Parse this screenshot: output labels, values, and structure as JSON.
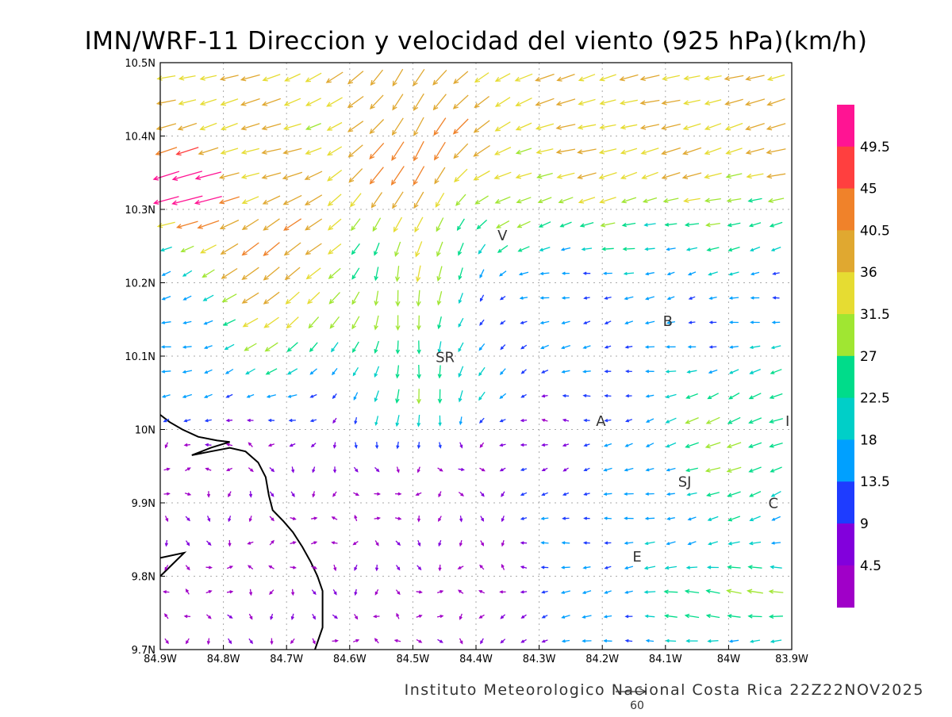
{
  "title": "IMN/WRF-11 Direccion y velocidad del viento (925 hPa)(km/h)",
  "credit": "Instituto Meteorologico Nacional Costa Rica 22Z22NOV2025",
  "map": {
    "lon_range": [
      -84.9,
      -83.9
    ],
    "lat_range": [
      9.7,
      10.5
    ],
    "grid_dashed": true,
    "x_ticks": [
      {
        "value": -84.9,
        "label": "84.9W"
      },
      {
        "value": -84.8,
        "label": "84.8W"
      },
      {
        "value": -84.7,
        "label": "84.7W"
      },
      {
        "value": -84.6,
        "label": "84.6W"
      },
      {
        "value": -84.5,
        "label": "84.5W"
      },
      {
        "value": -84.4,
        "label": "84.4W"
      },
      {
        "value": -84.3,
        "label": "84.3W"
      },
      {
        "value": -84.2,
        "label": "84.2W"
      },
      {
        "value": -84.1,
        "label": "84.1W"
      },
      {
        "value": -84.0,
        "label": "84W"
      },
      {
        "value": -83.9,
        "label": "83.9W"
      }
    ],
    "y_ticks": [
      {
        "value": 10.5,
        "label": "10.5N"
      },
      {
        "value": 10.4,
        "label": "10.4N"
      },
      {
        "value": 10.3,
        "label": "10.3N"
      },
      {
        "value": 10.2,
        "label": "10.2N"
      },
      {
        "value": 10.1,
        "label": "10.1N"
      },
      {
        "value": 10.0,
        "label": "10N"
      },
      {
        "value": 9.9,
        "label": "9.9N"
      },
      {
        "value": 9.8,
        "label": "9.8N"
      },
      {
        "value": 9.7,
        "label": "9.7N"
      }
    ],
    "cities": [
      {
        "label": "V",
        "lon": -84.366,
        "lat": 10.258
      },
      {
        "label": "SR",
        "lon": -84.464,
        "lat": 10.092
      },
      {
        "label": "B",
        "lon": -84.104,
        "lat": 10.141
      },
      {
        "label": "A",
        "lon": -84.21,
        "lat": 10.005
      },
      {
        "label": "I",
        "lon": -83.91,
        "lat": 10.005
      },
      {
        "label": "SJ",
        "lon": -84.08,
        "lat": 9.922
      },
      {
        "label": "C",
        "lon": -83.937,
        "lat": 9.893
      },
      {
        "label": "E",
        "lon": -84.152,
        "lat": 9.82
      }
    ],
    "coastline": [
      [
        -84.9,
        10.02
      ],
      [
        -84.885,
        10.01
      ],
      [
        -84.865,
        10.0
      ],
      [
        -84.84,
        9.99
      ],
      [
        -84.81,
        9.985
      ],
      [
        -84.79,
        9.983
      ],
      [
        -84.82,
        9.975
      ],
      [
        -84.85,
        9.965
      ],
      [
        -84.82,
        9.97
      ],
      [
        -84.79,
        9.975
      ],
      [
        -84.765,
        9.97
      ],
      [
        -84.745,
        9.955
      ],
      [
        -84.733,
        9.935
      ],
      [
        -84.728,
        9.91
      ],
      [
        -84.722,
        9.89
      ],
      [
        -84.705,
        9.875
      ],
      [
        -84.69,
        9.86
      ],
      [
        -84.675,
        9.84
      ],
      [
        -84.662,
        9.82
      ],
      [
        -84.651,
        9.8
      ],
      [
        -84.643,
        9.78
      ],
      [
        -84.643,
        9.755
      ],
      [
        -84.643,
        9.73
      ],
      [
        -84.655,
        9.7
      ]
    ],
    "peninsula": [
      [
        -84.9,
        9.825
      ],
      [
        -84.862,
        9.832
      ],
      [
        -84.9,
        9.8
      ]
    ]
  },
  "legend": {
    "levels": [
      {
        "label": "",
        "color": "#ff1493"
      },
      {
        "label": "49.5",
        "color": "#ff3f3f"
      },
      {
        "label": "45",
        "color": "#f0822a"
      },
      {
        "label": "40.5",
        "color": "#e0a830"
      },
      {
        "label": "36",
        "color": "#e6dc32"
      },
      {
        "label": "31.5",
        "color": "#a0e632"
      },
      {
        "label": "27",
        "color": "#00dc8a"
      },
      {
        "label": "22.5",
        "color": "#00cfc8"
      },
      {
        "label": "18",
        "color": "#00a0ff"
      },
      {
        "label": "13.5",
        "color": "#1e3cff"
      },
      {
        "label": "9",
        "color": "#8200dc"
      },
      {
        "label": "4.5",
        "color": "#a000c8"
      }
    ]
  },
  "reference_vector": {
    "label": "60",
    "speed": 60
  }
}
